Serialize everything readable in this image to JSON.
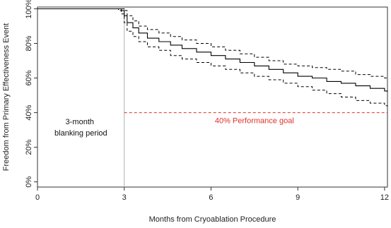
{
  "chart_data": {
    "type": "line",
    "title": "",
    "xlabel": "Months from Cryoablation Procedure",
    "ylabel": "Freedom from Primary Effectiveness Event",
    "xlim": [
      0,
      12.1
    ],
    "ylim": [
      -0.03,
      1.01
    ],
    "x_ticks": [
      0,
      3,
      6,
      9,
      12
    ],
    "x_tick_labels": [
      "0",
      "3",
      "6",
      "9",
      "12"
    ],
    "y_ticks": [
      0,
      0.2,
      0.4,
      0.6,
      0.8,
      1.0
    ],
    "y_tick_labels": [
      "0%",
      "20%",
      "40%",
      "60%",
      "80%",
      "100%"
    ],
    "grid": false,
    "colors": {
      "estimate": "#000000",
      "ci": "#000000",
      "goal": "#e0302a",
      "blanking_line": "#b0b0b0"
    },
    "series": [
      {
        "role": "estimate",
        "style": "solid",
        "x": [
          0,
          2.8,
          2.9,
          3.0,
          3.1,
          3.3,
          3.5,
          3.8,
          4.2,
          4.6,
          5.0,
          5.5,
          6.0,
          6.5,
          7.0,
          7.5,
          8.0,
          8.5,
          9.0,
          9.5,
          10.0,
          10.5,
          11.0,
          11.5,
          12.0,
          12.1
        ],
        "y": [
          1.0,
          1.0,
          0.99,
          0.96,
          0.92,
          0.89,
          0.86,
          0.83,
          0.81,
          0.79,
          0.77,
          0.75,
          0.73,
          0.71,
          0.69,
          0.67,
          0.65,
          0.63,
          0.61,
          0.6,
          0.58,
          0.57,
          0.555,
          0.54,
          0.525,
          0.52
        ]
      },
      {
        "role": "ci-upper",
        "style": "dashed",
        "x": [
          0,
          2.8,
          2.9,
          3.0,
          3.1,
          3.3,
          3.5,
          3.8,
          4.2,
          4.6,
          5.0,
          5.5,
          6.0,
          6.5,
          7.0,
          7.5,
          8.0,
          8.5,
          9.0,
          9.5,
          10.0,
          10.5,
          11.0,
          11.5,
          12.0,
          12.1
        ],
        "y": [
          1.0,
          1.0,
          1.0,
          0.99,
          0.96,
          0.93,
          0.9,
          0.88,
          0.86,
          0.84,
          0.82,
          0.8,
          0.78,
          0.76,
          0.74,
          0.72,
          0.7,
          0.68,
          0.67,
          0.66,
          0.65,
          0.64,
          0.62,
          0.61,
          0.6,
          0.6
        ]
      },
      {
        "role": "ci-lower",
        "style": "dashed",
        "x": [
          0,
          2.8,
          2.9,
          3.0,
          3.1,
          3.3,
          3.5,
          3.8,
          4.2,
          4.6,
          5.0,
          5.5,
          6.0,
          6.5,
          7.0,
          7.5,
          8.0,
          8.5,
          9.0,
          9.5,
          10.0,
          10.5,
          11.0,
          11.5,
          12.0,
          12.1
        ],
        "y": [
          1.0,
          0.99,
          0.97,
          0.92,
          0.87,
          0.84,
          0.81,
          0.78,
          0.76,
          0.73,
          0.71,
          0.69,
          0.67,
          0.65,
          0.63,
          0.61,
          0.59,
          0.57,
          0.55,
          0.53,
          0.51,
          0.49,
          0.47,
          0.455,
          0.44,
          0.435
        ]
      }
    ],
    "reference_lines": [
      {
        "type": "horizontal",
        "y": 0.4,
        "x_from": 3,
        "x_to": 12.1,
        "label": "40% Performance goal",
        "style": "dashed"
      },
      {
        "type": "vertical",
        "x": 3,
        "style": "solid"
      }
    ],
    "annotations": [
      {
        "lines": [
          "3-month",
          "blanking period"
        ],
        "x": 1.5,
        "y": 0.3
      }
    ]
  }
}
